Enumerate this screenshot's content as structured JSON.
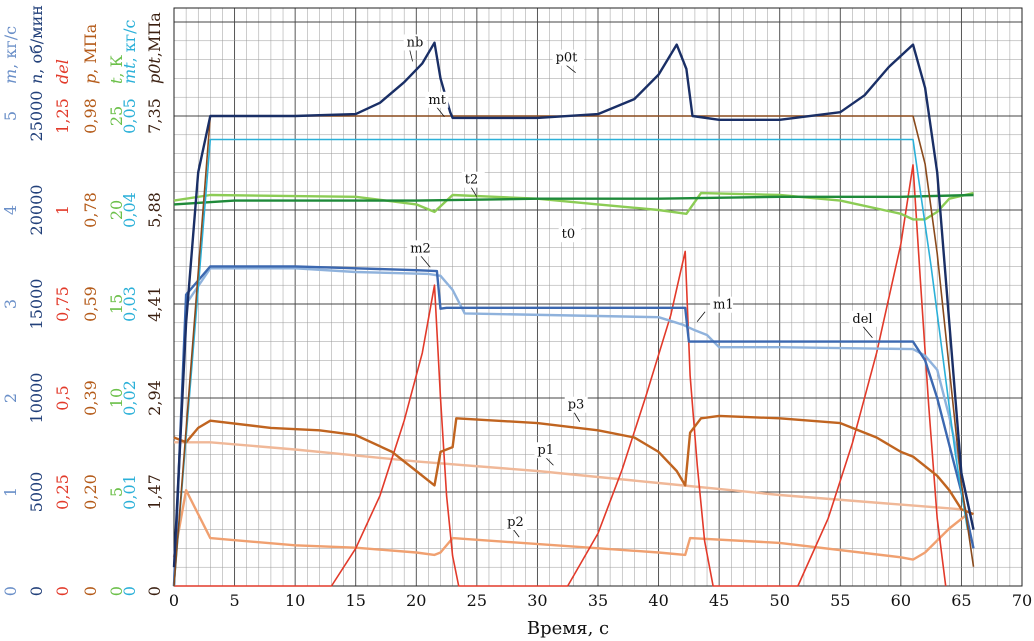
{
  "chart_data": {
    "type": "line",
    "xlabel": "Время, с",
    "xlim": [
      0,
      70
    ],
    "xticks": [
      0,
      5,
      10,
      15,
      20,
      25,
      30,
      35,
      40,
      45,
      50,
      55,
      60,
      65,
      70
    ],
    "grid": true,
    "y_axes": [
      {
        "id": "m",
        "label_sym": "m",
        "label_unit": ", кг/с",
        "color": "#6a8fc8",
        "ticks": [
          "0",
          "1",
          "2",
          "3",
          "4",
          "5"
        ]
      },
      {
        "id": "n",
        "label_sym": "n",
        "label_unit": ", об/мин",
        "color": "#22407a",
        "ticks": [
          "0",
          "5000",
          "10000",
          "15000",
          "20000",
          "25000"
        ]
      },
      {
        "id": "del",
        "label_sym": "del",
        "label_unit": "",
        "color": "#e23a2a",
        "ticks": [
          "0",
          "0,25",
          "0,5",
          "0,75",
          "1",
          "1,25"
        ]
      },
      {
        "id": "p",
        "label_sym": "p",
        "label_unit": ", МПа",
        "color": "#b45a18",
        "ticks": [
          "0",
          "0,20",
          "0,39",
          "0,59",
          "0,78",
          "0,98"
        ]
      },
      {
        "id": "t",
        "label_sym": "t",
        "label_unit": ", К",
        "color": "#6cc04a",
        "ticks": [
          "0",
          "5",
          "10",
          "15",
          "20",
          "25"
        ]
      },
      {
        "id": "mt",
        "label_sym": "mt",
        "label_unit": ", кг/с",
        "color": "#2bb0d8",
        "ticks": [
          "0",
          "0,01",
          "0,02",
          "0,03",
          "0,04",
          "0,05"
        ]
      },
      {
        "id": "p0t",
        "label_sym": "p0t",
        "label_unit": ",МПа",
        "color": "#3a1f10",
        "ticks": [
          "0",
          "1,47",
          "2,94",
          "4,41",
          "5,88",
          "7,35"
        ]
      }
    ],
    "series": [
      {
        "name": "nb",
        "axis": "n",
        "color": "#1a2f66",
        "x": [
          0,
          1,
          2,
          3,
          10,
          15,
          17,
          19,
          20.5,
          21.5,
          22,
          22.8,
          23,
          30,
          35,
          38,
          40,
          41.5,
          42.3,
          42.8,
          45,
          50,
          55,
          57,
          59,
          61,
          62,
          63,
          64,
          65,
          66
        ],
        "y": [
          1000,
          14000,
          22000,
          25000,
          25000,
          25100,
          25700,
          26800,
          27800,
          28900,
          27000,
          25200,
          24900,
          24900,
          25100,
          25900,
          27200,
          28800,
          27500,
          25000,
          24800,
          24800,
          25200,
          26100,
          27600,
          28800,
          26500,
          22000,
          14000,
          6000,
          3000
        ]
      },
      {
        "name": "p0t",
        "axis": "p0t",
        "color": "#8a4a1c",
        "x": [
          0,
          3,
          61,
          62,
          63,
          64,
          65,
          66
        ],
        "y": [
          0,
          7.35,
          7.35,
          6.6,
          5.2,
          3.4,
          1.6,
          0.3
        ]
      },
      {
        "name": "mt",
        "axis": "mt",
        "color": "#2bb0d8",
        "x": [
          0,
          3,
          61,
          61.5,
          62.5,
          63.5,
          64.5,
          65.5
        ],
        "y": [
          0,
          0.0475,
          0.0475,
          0.043,
          0.034,
          0.024,
          0.014,
          0.006
        ]
      },
      {
        "name": "t2",
        "axis": "t",
        "color": "#1f8a3a",
        "x": [
          0,
          5,
          10,
          20,
          30,
          40,
          50,
          60,
          66
        ],
        "y": [
          20.3,
          20.5,
          20.5,
          20.5,
          20.6,
          20.6,
          20.7,
          20.7,
          20.8
        ]
      },
      {
        "name": "t0",
        "axis": "t",
        "color": "#8ccc55",
        "x": [
          0,
          3,
          15,
          20,
          21.5,
          23,
          30,
          35,
          40,
          42.3,
          43.5,
          50,
          55,
          60,
          61,
          62,
          63,
          64,
          66
        ],
        "y": [
          20.5,
          20.8,
          20.7,
          20.3,
          19.9,
          20.8,
          20.6,
          20.3,
          20.0,
          19.8,
          20.9,
          20.8,
          20.5,
          19.8,
          19.5,
          19.5,
          19.9,
          20.6,
          20.9
        ]
      },
      {
        "name": "m2",
        "axis": "m",
        "color": "#3c68b0",
        "x": [
          0,
          1,
          3,
          10,
          15,
          20,
          21.7,
          22,
          22.5,
          42.2,
          42.5,
          61,
          62,
          63,
          64,
          65,
          66
        ],
        "y": [
          0,
          3.1,
          3.4,
          3.4,
          3.38,
          3.36,
          3.35,
          2.95,
          2.96,
          2.96,
          2.6,
          2.6,
          2.4,
          2.0,
          1.5,
          1.0,
          0.4
        ]
      },
      {
        "name": "m1",
        "axis": "m",
        "color": "#8fb2dc",
        "x": [
          0,
          1,
          3,
          10,
          15,
          21,
          22,
          23,
          24,
          40,
          42,
          43,
          44,
          45,
          50,
          61,
          62,
          63,
          64,
          65,
          66
        ],
        "y": [
          0,
          3.0,
          3.38,
          3.38,
          3.34,
          3.32,
          3.3,
          3.15,
          2.9,
          2.86,
          2.78,
          2.72,
          2.67,
          2.54,
          2.54,
          2.52,
          2.45,
          2.3,
          1.8,
          1.2,
          0.6
        ]
      },
      {
        "name": "del",
        "axis": "del",
        "color": "#e23a2a",
        "x": [
          0,
          13,
          15,
          17,
          19,
          20.5,
          21.5,
          22,
          22.5,
          23,
          23.5,
          32.5,
          35,
          37,
          39,
          41,
          42.2,
          42.6,
          43.2,
          43.8,
          44.5,
          51.5,
          54,
          56,
          58,
          60,
          61,
          61.6,
          62.3,
          63,
          63.7
        ],
        "y": [
          0,
          0,
          0.1,
          0.24,
          0.44,
          0.62,
          0.8,
          0.5,
          0.24,
          0.08,
          0,
          0,
          0.14,
          0.31,
          0.51,
          0.72,
          0.89,
          0.56,
          0.32,
          0.12,
          0,
          0,
          0.18,
          0.38,
          0.62,
          0.91,
          1.12,
          0.82,
          0.48,
          0.18,
          0
        ]
      },
      {
        "name": "p3",
        "axis": "p",
        "color": "#c06420",
        "x": [
          0,
          1,
          2,
          3,
          8,
          12,
          15,
          18,
          20,
          21.5,
          22,
          23,
          23.3,
          30,
          35,
          38,
          40,
          41.5,
          42.2,
          42.6,
          43.5,
          45,
          50,
          55,
          58,
          60,
          61,
          62,
          63,
          64,
          65,
          66
        ],
        "y": [
          0.31,
          0.3,
          0.33,
          0.345,
          0.33,
          0.325,
          0.315,
          0.28,
          0.24,
          0.21,
          0.28,
          0.29,
          0.35,
          0.34,
          0.325,
          0.31,
          0.28,
          0.24,
          0.21,
          0.32,
          0.35,
          0.355,
          0.35,
          0.34,
          0.31,
          0.28,
          0.27,
          0.25,
          0.23,
          0.2,
          0.16,
          0.15
        ]
      },
      {
        "name": "p1",
        "axis": "p",
        "color": "#f0b898",
        "x": [
          0,
          3,
          10,
          20,
          30,
          40,
          50,
          60,
          65
        ],
        "y": [
          0.3,
          0.3,
          0.285,
          0.26,
          0.24,
          0.215,
          0.19,
          0.17,
          0.16
        ]
      },
      {
        "name": "p2",
        "axis": "p",
        "color": "#f0a070",
        "x": [
          0,
          1,
          3,
          10,
          15,
          20,
          21.5,
          22,
          23,
          40,
          42.2,
          42.6,
          50,
          60,
          61,
          62,
          64,
          65.5
        ],
        "y": [
          0.06,
          0.2,
          0.1,
          0.085,
          0.08,
          0.07,
          0.065,
          0.07,
          0.1,
          0.07,
          0.065,
          0.1,
          0.09,
          0.06,
          0.055,
          0.07,
          0.12,
          0.15
        ]
      }
    ],
    "annotations": [
      {
        "text": "nb",
        "x": 19.2,
        "axis": "n",
        "y": 28700
      },
      {
        "text": "p0t",
        "x": 31.5,
        "axis": "p0t",
        "y": 8.2
      },
      {
        "text": "mt",
        "x": 21.0,
        "axis": "mt",
        "y": 0.0513
      },
      {
        "text": "t2",
        "x": 24.0,
        "axis": "t",
        "y": 21.4
      },
      {
        "text": "t0",
        "x": 32.0,
        "axis": "t",
        "y": 18.5
      },
      {
        "text": "m2",
        "x": 19.5,
        "axis": "m",
        "y": 3.55
      },
      {
        "text": "m1",
        "x": 44.5,
        "axis": "m",
        "y": 2.95
      },
      {
        "text": "del",
        "x": 56.0,
        "axis": "del",
        "y": 0.7
      },
      {
        "text": "p3",
        "x": 32.5,
        "axis": "p",
        "y": 0.37
      },
      {
        "text": "p1",
        "x": 30.0,
        "axis": "p",
        "y": 0.275
      },
      {
        "text": "p2",
        "x": 27.5,
        "axis": "p",
        "y": 0.125
      }
    ]
  }
}
